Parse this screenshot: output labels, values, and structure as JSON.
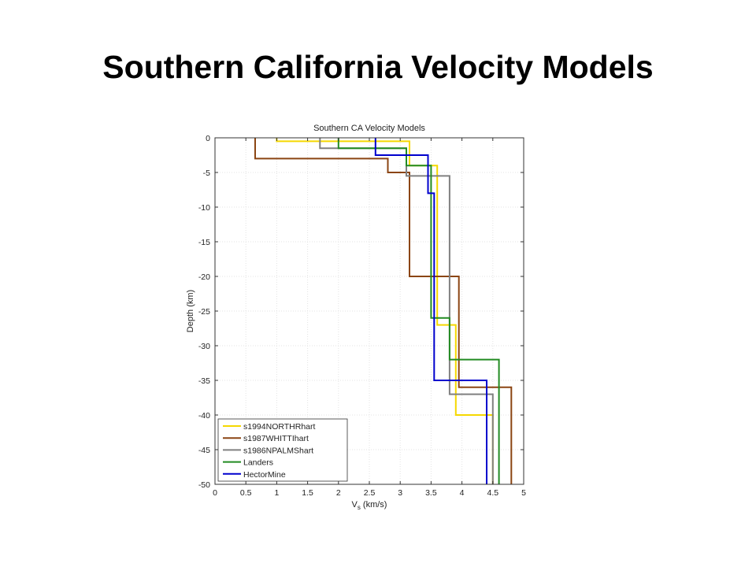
{
  "slide": {
    "title": "Southern California Velocity Models"
  },
  "chart_data": {
    "type": "line",
    "title": "Southern CA Velocity Models",
    "xlabel_main": "V",
    "xlabel_sub": "s",
    "xlabel_unit": "(km/s)",
    "ylabel": "Depth (km)",
    "xlim": [
      0,
      5
    ],
    "ylim": [
      -50,
      0
    ],
    "xticks": [
      0,
      0.5,
      1,
      1.5,
      2,
      2.5,
      3,
      3.5,
      4,
      4.5,
      5
    ],
    "xtick_labels": [
      "0",
      "0.5",
      "1",
      "1.5",
      "2",
      "2.5",
      "3",
      "3.5",
      "4",
      "4.5",
      "5"
    ],
    "yticks": [
      0,
      -5,
      -10,
      -15,
      -20,
      -25,
      -30,
      -35,
      -40,
      -45,
      -50
    ],
    "ytick_labels": [
      "0",
      "-5",
      "-10",
      "-15",
      "-20",
      "-25",
      "-30",
      "-35",
      "-40",
      "-45",
      "-50"
    ],
    "grid": true,
    "legend_position": "bottom-left",
    "series": [
      {
        "name": "s1994NORTHRhart",
        "color": "#f5d800",
        "x": [
          1.0,
          1.0,
          3.15,
          3.15,
          3.6,
          3.6,
          3.9,
          3.9,
          4.5,
          4.5
        ],
        "y": [
          0,
          -0.5,
          -0.5,
          -4,
          -4,
          -27,
          -27,
          -40,
          -40,
          -50
        ]
      },
      {
        "name": "s1987WHITTIhart",
        "color": "#8b4513",
        "x": [
          0.65,
          0.65,
          2.8,
          2.8,
          3.15,
          3.15,
          3.95,
          3.95,
          4.8,
          4.8
        ],
        "y": [
          0,
          -3,
          -3,
          -5,
          -5,
          -20,
          -20,
          -36,
          -36,
          -50
        ]
      },
      {
        "name": "s1986NPALMShart",
        "color": "#808080",
        "x": [
          1.7,
          1.7,
          3.1,
          3.1,
          3.8,
          3.8,
          4.5,
          4.5
        ],
        "y": [
          0,
          -1.5,
          -1.5,
          -5.5,
          -5.5,
          -37,
          -37,
          -50
        ]
      },
      {
        "name": "Landers",
        "color": "#228b22",
        "x": [
          2.0,
          2.0,
          3.1,
          3.1,
          3.5,
          3.5,
          3.8,
          3.8,
          4.6,
          4.6
        ],
        "y": [
          0,
          -1.5,
          -1.5,
          -4,
          -4,
          -26,
          -26,
          -32,
          -32,
          -50
        ]
      },
      {
        "name": "HectorMine",
        "color": "#0000cd",
        "x": [
          2.6,
          2.6,
          3.45,
          3.45,
          3.55,
          3.55,
          4.4,
          4.4
        ],
        "y": [
          0,
          -2.5,
          -2.5,
          -8,
          -8,
          -35,
          -35,
          -50
        ]
      }
    ]
  }
}
